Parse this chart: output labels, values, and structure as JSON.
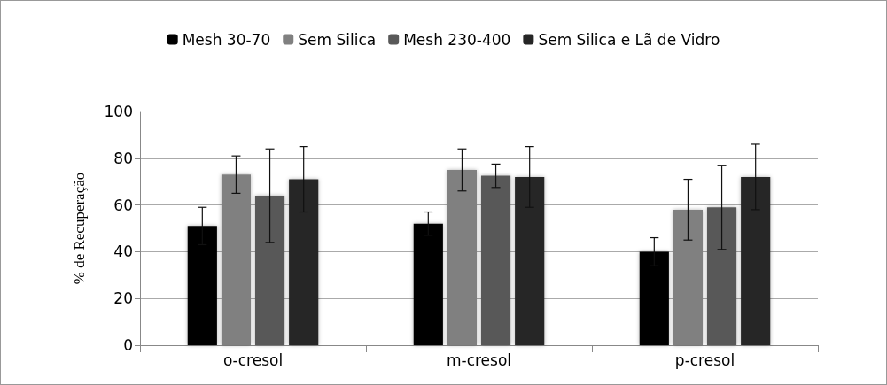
{
  "chart_data": {
    "type": "bar",
    "ylabel": "% de Recuperação",
    "categories": [
      "o-cresol",
      "m-cresol",
      "p-cresol"
    ],
    "series": [
      {
        "name": "Mesh 30-70",
        "color": "#000000",
        "values": [
          51,
          52,
          40
        ],
        "errors": [
          8,
          5,
          6
        ]
      },
      {
        "name": "Sem Silica",
        "color": "#808080",
        "values": [
          73,
          75,
          58
        ],
        "errors": [
          8,
          9,
          13
        ]
      },
      {
        "name": "Mesh 230-400",
        "color": "#595959",
        "values": [
          64,
          72.5,
          59
        ],
        "errors": [
          20,
          5,
          18
        ]
      },
      {
        "name": "Sem Silica e Lã de Vidro",
        "color": "#262626",
        "values": [
          71,
          72,
          72
        ],
        "errors": [
          14,
          13,
          14
        ]
      }
    ],
    "ylim": [
      0,
      100
    ],
    "yticks": [
      0,
      20,
      40,
      60,
      80,
      100
    ],
    "grid": "y",
    "legend": "top"
  }
}
